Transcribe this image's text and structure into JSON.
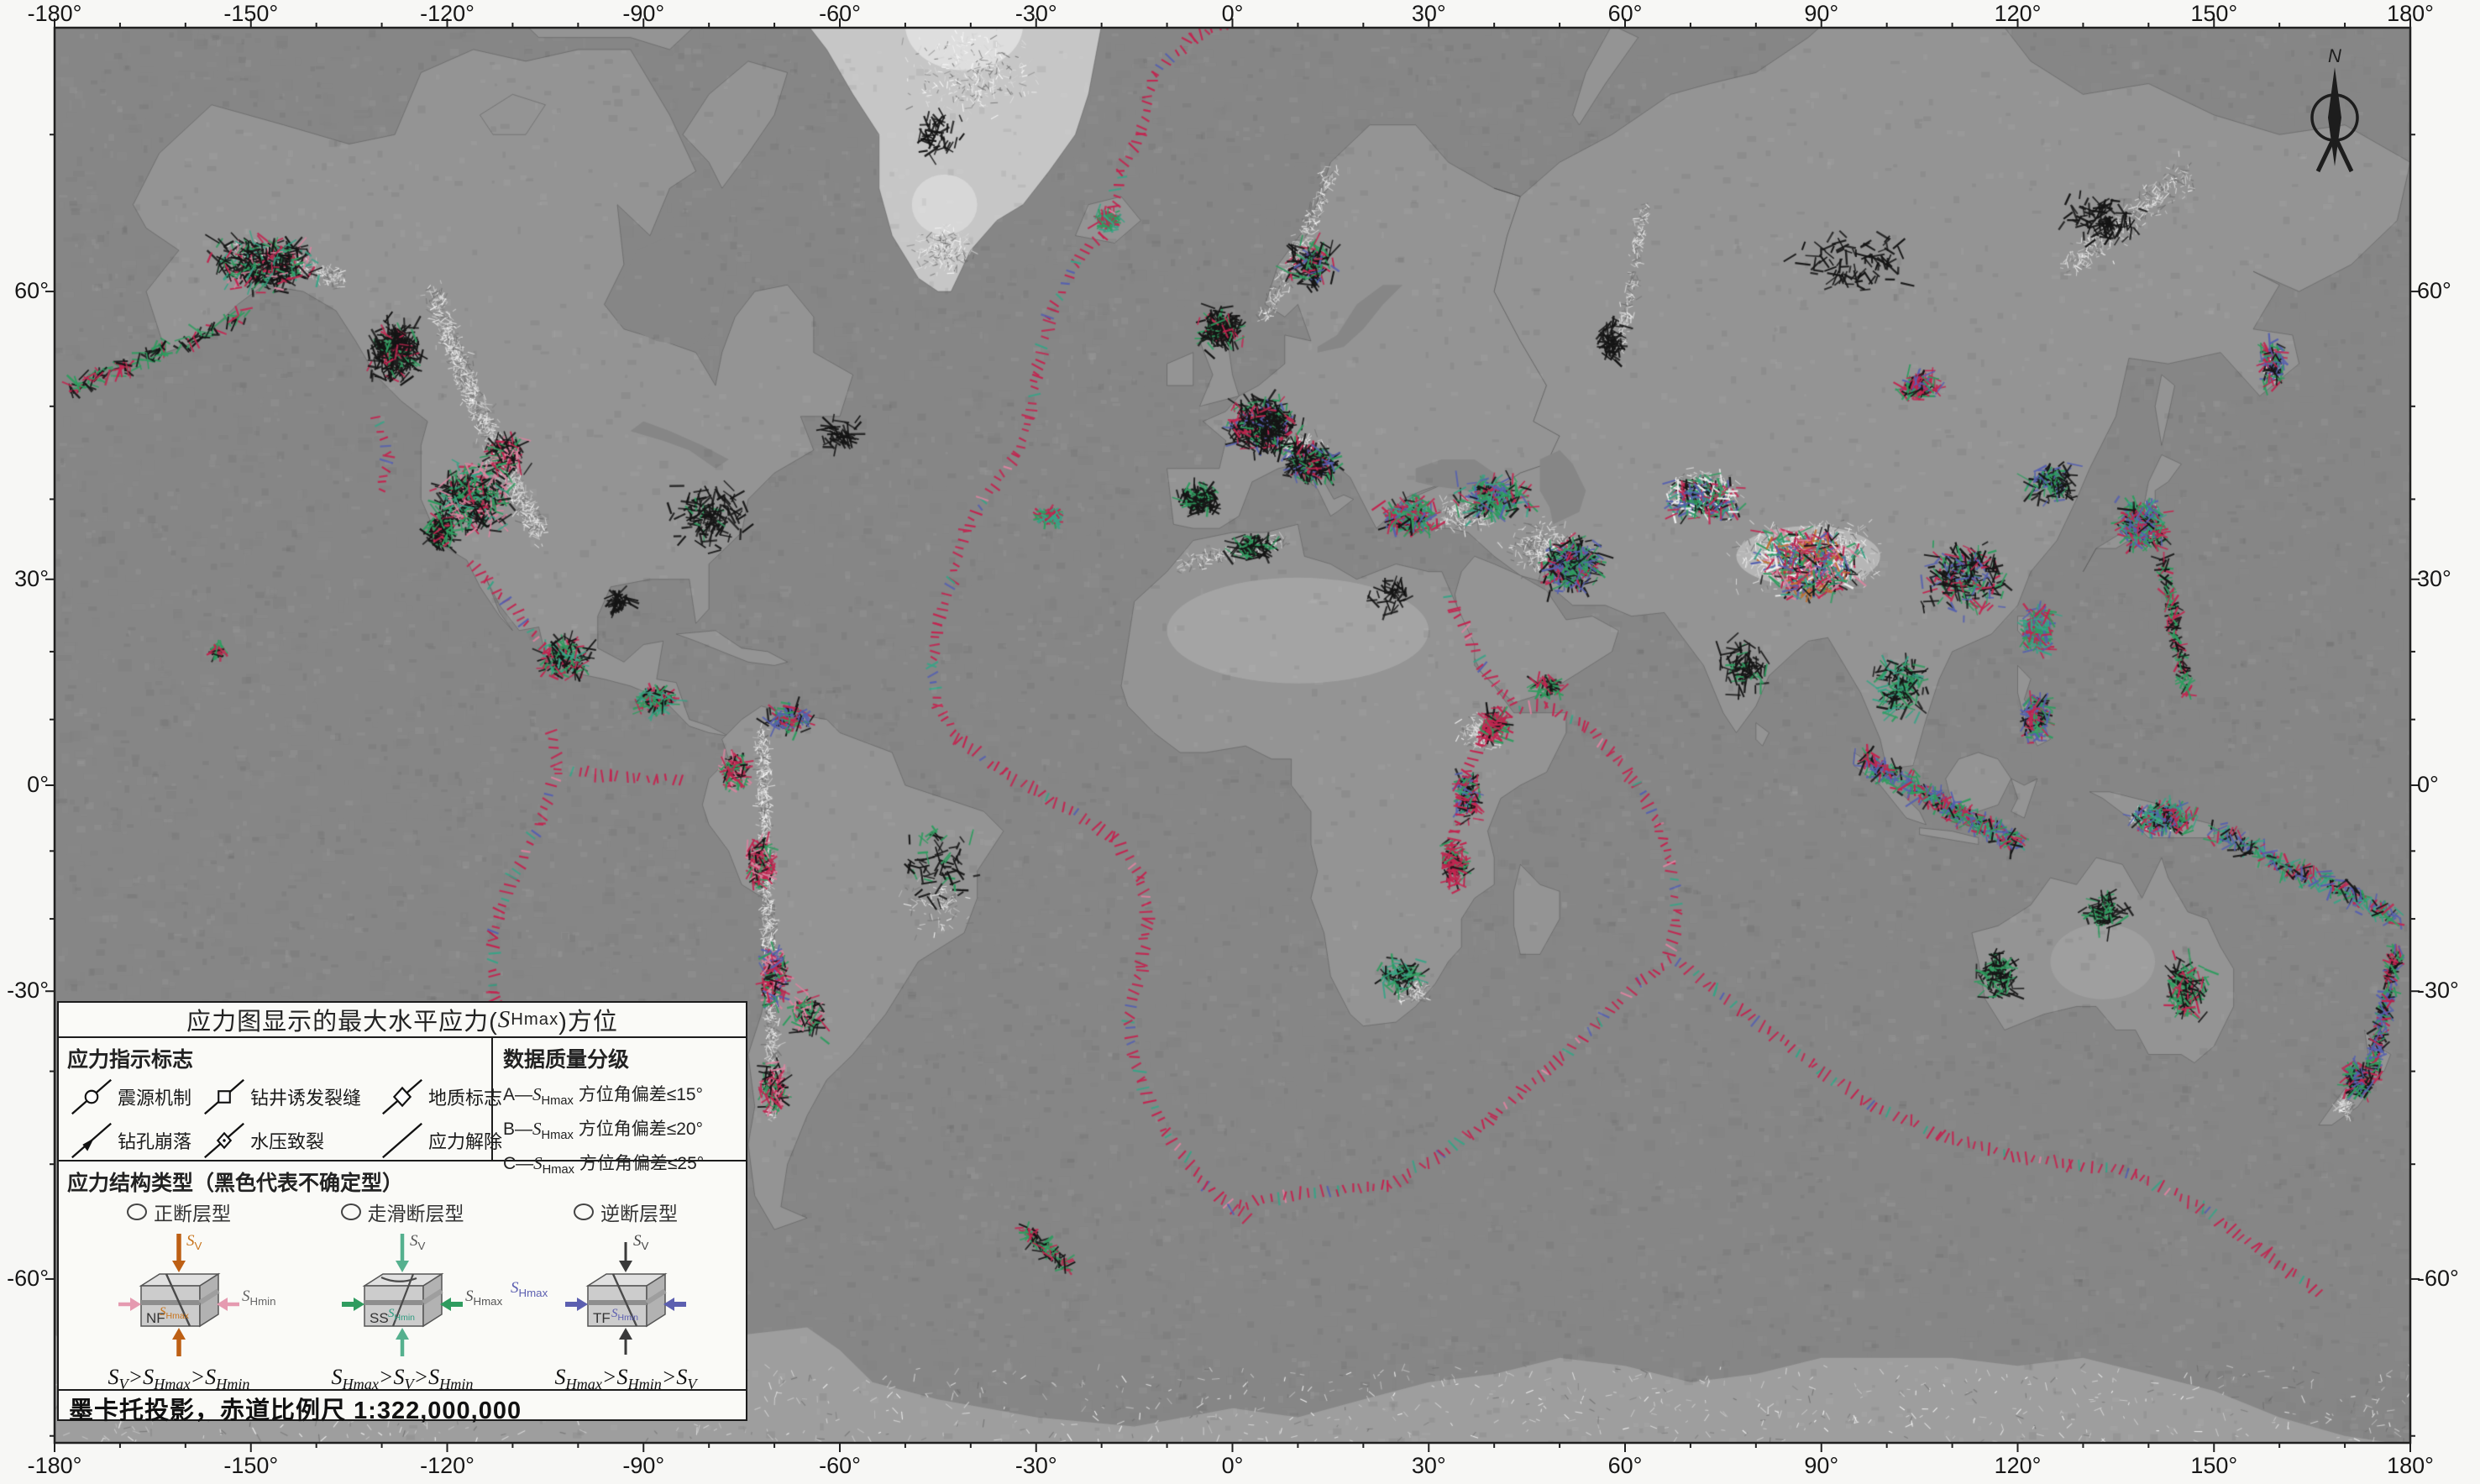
{
  "axes": {
    "lon_labels": [
      "-180°",
      "-150°",
      "-120°",
      "-90°",
      "-60°",
      "-30°",
      "0°",
      "30°",
      "60°",
      "90°",
      "120°",
      "150°",
      "180°"
    ],
    "lat_labels": [
      "60°",
      "30°",
      "0°",
      "-30°",
      "-60°"
    ]
  },
  "compass": {
    "north_label": "N"
  },
  "legend": {
    "title": "应力图显示的最大水平应力(S_Hmax)方位",
    "indicators": {
      "heading": "应力指示标志",
      "items": [
        {
          "label": "震源机制",
          "glyph": "focal-mechanism-circle"
        },
        {
          "label": "钻井诱发裂缝",
          "glyph": "drilling-induced-fracture-square"
        },
        {
          "label": "地质标志",
          "glyph": "geologic-indicator-diamond"
        },
        {
          "label": "钻孔崩落",
          "glyph": "borehole-breakout-arrow"
        },
        {
          "label": "水压致裂",
          "glyph": "hydraulic-fracture-diamond"
        },
        {
          "label": "应力解除",
          "glyph": "overcoring-line"
        }
      ]
    },
    "quality": {
      "heading": "数据质量分级",
      "rows": [
        "A—S_Hmax 方位角偏差≤15°",
        "B—S_Hmax 方位角偏差≤20°",
        "C—S_Hmax 方位角偏差≤25°"
      ]
    },
    "regimes": {
      "heading": "应力结构类型（黑色代表不确定型）",
      "types": [
        {
          "name": "正断层型",
          "code": "NF",
          "formula": "S_V>S_Hmax>S_Hmin",
          "labels": {
            "top": "S_V",
            "side": "S_Hmin",
            "inner": "S_Hmax"
          },
          "colors": {
            "vertical": "#bd5f14",
            "horizontal": "#e59ab0"
          }
        },
        {
          "name": "走滑断层型",
          "code": "SS",
          "formula": "S_Hmax>S_V>S_Hmin",
          "labels": {
            "top": "S_V",
            "side": "S_Hmax",
            "inner": "S_Hmin"
          },
          "colors": {
            "vertical": "#55b08e",
            "horizontal": "#2f9c5f"
          }
        },
        {
          "name": "逆断层型",
          "code": "TF",
          "formula": "S_Hmax>S_Hmin>S_V",
          "labels": {
            "top": "S_V",
            "side": "S_Hmax",
            "inner": "S_Hmin"
          },
          "colors": {
            "vertical": "#3a3a3a",
            "horizontal": "#5c5fb0"
          }
        }
      ]
    },
    "scale_note": "墨卡托投影，赤道比例尺 1:322,000,000"
  },
  "map": {
    "symbol_colors": {
      "normal_fault_red": "#c22550",
      "strike_slip_green": "#2f9c5f",
      "thrust_blue": "#5560b0",
      "undetermined_black": "#151515"
    },
    "ocean_gray": "#868686",
    "land_gray": "#949494",
    "ice_gray": "#c6c6c6"
  }
}
